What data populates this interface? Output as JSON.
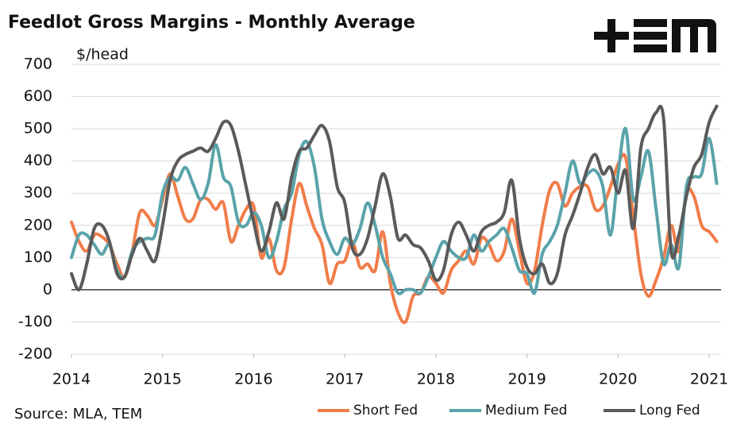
{
  "chart_data": {
    "type": "line",
    "title": "Feedlot Gross Margins - Monthly Average",
    "y_label": "$/head",
    "source": "Source: MLA, TEM",
    "xlim": [
      2014,
      2021.13
    ],
    "xticks": [
      2014,
      2015,
      2016,
      2017,
      2018,
      2019,
      2020,
      2021
    ],
    "ylim": [
      -200,
      700
    ],
    "yticks": [
      -200,
      -100,
      0,
      100,
      200,
      300,
      400,
      500,
      600,
      700
    ],
    "grid": true,
    "legend": "bottom",
    "x": [
      2014,
      2014.083,
      2014.167,
      2014.25,
      2014.333,
      2014.417,
      2014.5,
      2014.583,
      2014.667,
      2014.75,
      2014.833,
      2014.917,
      2015,
      2015.083,
      2015.167,
      2015.25,
      2015.333,
      2015.417,
      2015.5,
      2015.583,
      2015.667,
      2015.75,
      2015.833,
      2015.917,
      2016,
      2016.083,
      2016.167,
      2016.25,
      2016.333,
      2016.417,
      2016.5,
      2016.583,
      2016.667,
      2016.75,
      2016.833,
      2016.917,
      2017,
      2017.083,
      2017.167,
      2017.25,
      2017.333,
      2017.417,
      2017.5,
      2017.583,
      2017.667,
      2017.75,
      2017.833,
      2017.917,
      2018,
      2018.083,
      2018.167,
      2018.25,
      2018.333,
      2018.417,
      2018.5,
      2018.583,
      2018.667,
      2018.75,
      2018.833,
      2018.917,
      2019,
      2019.083,
      2019.167,
      2019.25,
      2019.333,
      2019.417,
      2019.5,
      2019.583,
      2019.667,
      2019.75,
      2019.833,
      2019.917,
      2020,
      2020.083,
      2020.167,
      2020.25,
      2020.333,
      2020.417,
      2020.5,
      2020.583,
      2020.667,
      2020.75,
      2020.833,
      2020.917,
      2021,
      2021.083
    ],
    "series": [
      {
        "name": "Short Fed",
        "color": "#f07d4a",
        "values": [
          210,
          150,
          120,
          170,
          165,
          140,
          80,
          40,
          120,
          240,
          230,
          200,
          280,
          360,
          290,
          220,
          220,
          280,
          280,
          250,
          270,
          150,
          200,
          250,
          260,
          100,
          160,
          60,
          70,
          220,
          330,
          260,
          190,
          140,
          20,
          80,
          90,
          150,
          70,
          80,
          60,
          180,
          20,
          -70,
          -100,
          -20,
          -10,
          40,
          20,
          -10,
          60,
          90,
          120,
          80,
          160,
          140,
          90,
          120,
          220,
          120,
          20,
          60,
          200,
          310,
          330,
          260,
          300,
          320,
          320,
          250,
          260,
          320,
          390,
          410,
          230,
          50,
          -20,
          30,
          100,
          200,
          120,
          300,
          290,
          200,
          180,
          150
        ]
      },
      {
        "name": "Medium Fed",
        "color": "#5aa3aa",
        "values": [
          100,
          170,
          170,
          140,
          110,
          140,
          60,
          40,
          120,
          150,
          160,
          170,
          300,
          350,
          340,
          380,
          330,
          280,
          330,
          450,
          350,
          320,
          210,
          200,
          240,
          200,
          100,
          150,
          250,
          300,
          420,
          460,
          380,
          220,
          150,
          110,
          160,
          140,
          190,
          270,
          200,
          100,
          50,
          -10,
          0,
          0,
          -10,
          40,
          100,
          150,
          120,
          100,
          100,
          170,
          120,
          150,
          170,
          190,
          130,
          60,
          50,
          -10,
          110,
          150,
          200,
          300,
          400,
          330,
          360,
          370,
          320,
          170,
          360,
          500,
          280,
          350,
          430,
          250,
          80,
          140,
          70,
          320,
          350,
          360,
          470,
          330
        ]
      },
      {
        "name": "Long Fed",
        "color": "#5a5a5a",
        "values": [
          50,
          0,
          80,
          190,
          200,
          150,
          50,
          40,
          110,
          160,
          120,
          90,
          200,
          340,
          400,
          420,
          430,
          440,
          430,
          470,
          520,
          510,
          430,
          320,
          210,
          120,
          180,
          270,
          220,
          350,
          430,
          440,
          480,
          510,
          460,
          320,
          270,
          130,
          110,
          160,
          260,
          360,
          290,
          160,
          170,
          140,
          130,
          90,
          30,
          60,
          170,
          210,
          170,
          120,
          180,
          200,
          210,
          240,
          340,
          160,
          70,
          50,
          80,
          20,
          50,
          170,
          230,
          300,
          380,
          420,
          360,
          380,
          300,
          370,
          190,
          440,
          500,
          550,
          530,
          120,
          170,
          290,
          380,
          420,
          520,
          570
        ]
      }
    ]
  }
}
